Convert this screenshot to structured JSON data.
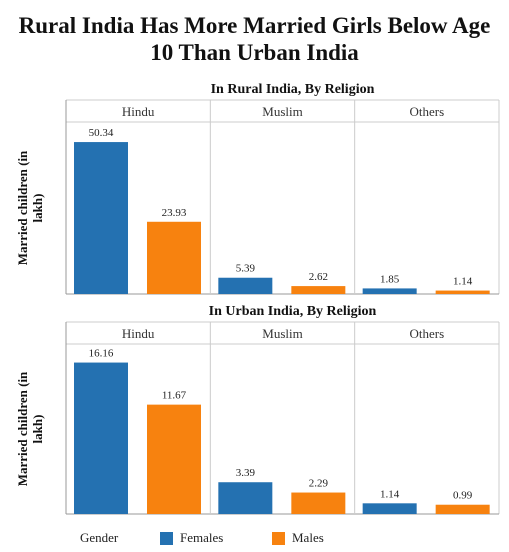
{
  "title_line1": "Rural India Has More Married Girls Below Age",
  "title_line2": "10 Than Urban India",
  "colors": {
    "females": "#2471b1",
    "males": "#f7820f",
    "grid": "#cccccc",
    "axis": "#999999"
  },
  "legend": {
    "title": "Gender",
    "females": "Females",
    "males": "Males"
  },
  "chart_data": [
    {
      "type": "bar",
      "title": "In Rural India, By Religion",
      "ylabel": "Married children (in lakh)",
      "categories": [
        "Hindu",
        "Muslim",
        "Others"
      ],
      "series": [
        {
          "name": "Females",
          "values": [
            50.34,
            5.39,
            1.85
          ]
        },
        {
          "name": "Males",
          "values": [
            23.93,
            2.62,
            1.14
          ]
        }
      ],
      "ylim": [
        0,
        55
      ]
    },
    {
      "type": "bar",
      "title": "In Urban India, By Religion",
      "ylabel": "Married children (in lakh)",
      "categories": [
        "Hindu",
        "Muslim",
        "Others"
      ],
      "series": [
        {
          "name": "Females",
          "values": [
            16.16,
            3.39,
            1.14
          ]
        },
        {
          "name": "Males",
          "values": [
            11.67,
            2.29,
            0.99
          ]
        }
      ],
      "ylim": [
        0,
        17.5
      ]
    }
  ]
}
